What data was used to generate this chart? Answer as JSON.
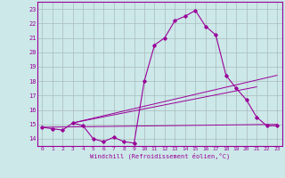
{
  "bg_color": "#cce8e8",
  "grid_color": "#aabbbb",
  "line_color": "#990099",
  "xlim": [
    -0.5,
    23.5
  ],
  "ylim": [
    13.5,
    23.5
  ],
  "xticks": [
    0,
    1,
    2,
    3,
    4,
    5,
    6,
    7,
    8,
    9,
    10,
    11,
    12,
    13,
    14,
    15,
    16,
    17,
    18,
    19,
    20,
    21,
    22,
    23
  ],
  "yticks": [
    14,
    15,
    16,
    17,
    18,
    19,
    20,
    21,
    22,
    23
  ],
  "xlabel": "Windchill (Refroidissement éolien,°C)",
  "curve1_x": [
    0,
    1,
    2,
    3,
    4,
    5,
    6,
    7,
    8,
    9,
    10,
    11,
    12,
    13,
    14,
    15,
    16,
    17,
    18,
    19,
    20,
    21,
    22,
    23
  ],
  "curve1_y": [
    14.8,
    14.7,
    14.6,
    15.1,
    14.9,
    14.0,
    13.8,
    14.1,
    13.8,
    13.7,
    18.0,
    20.5,
    21.0,
    22.2,
    22.5,
    22.9,
    21.8,
    21.2,
    18.4,
    17.5,
    16.7,
    15.5,
    14.9,
    14.9
  ],
  "line1_x": [
    0,
    23
  ],
  "line1_y": [
    14.8,
    15.0
  ],
  "line2_x": [
    3,
    23
  ],
  "line2_y": [
    15.1,
    18.4
  ],
  "line3_x": [
    3,
    21
  ],
  "line3_y": [
    15.1,
    17.6
  ]
}
